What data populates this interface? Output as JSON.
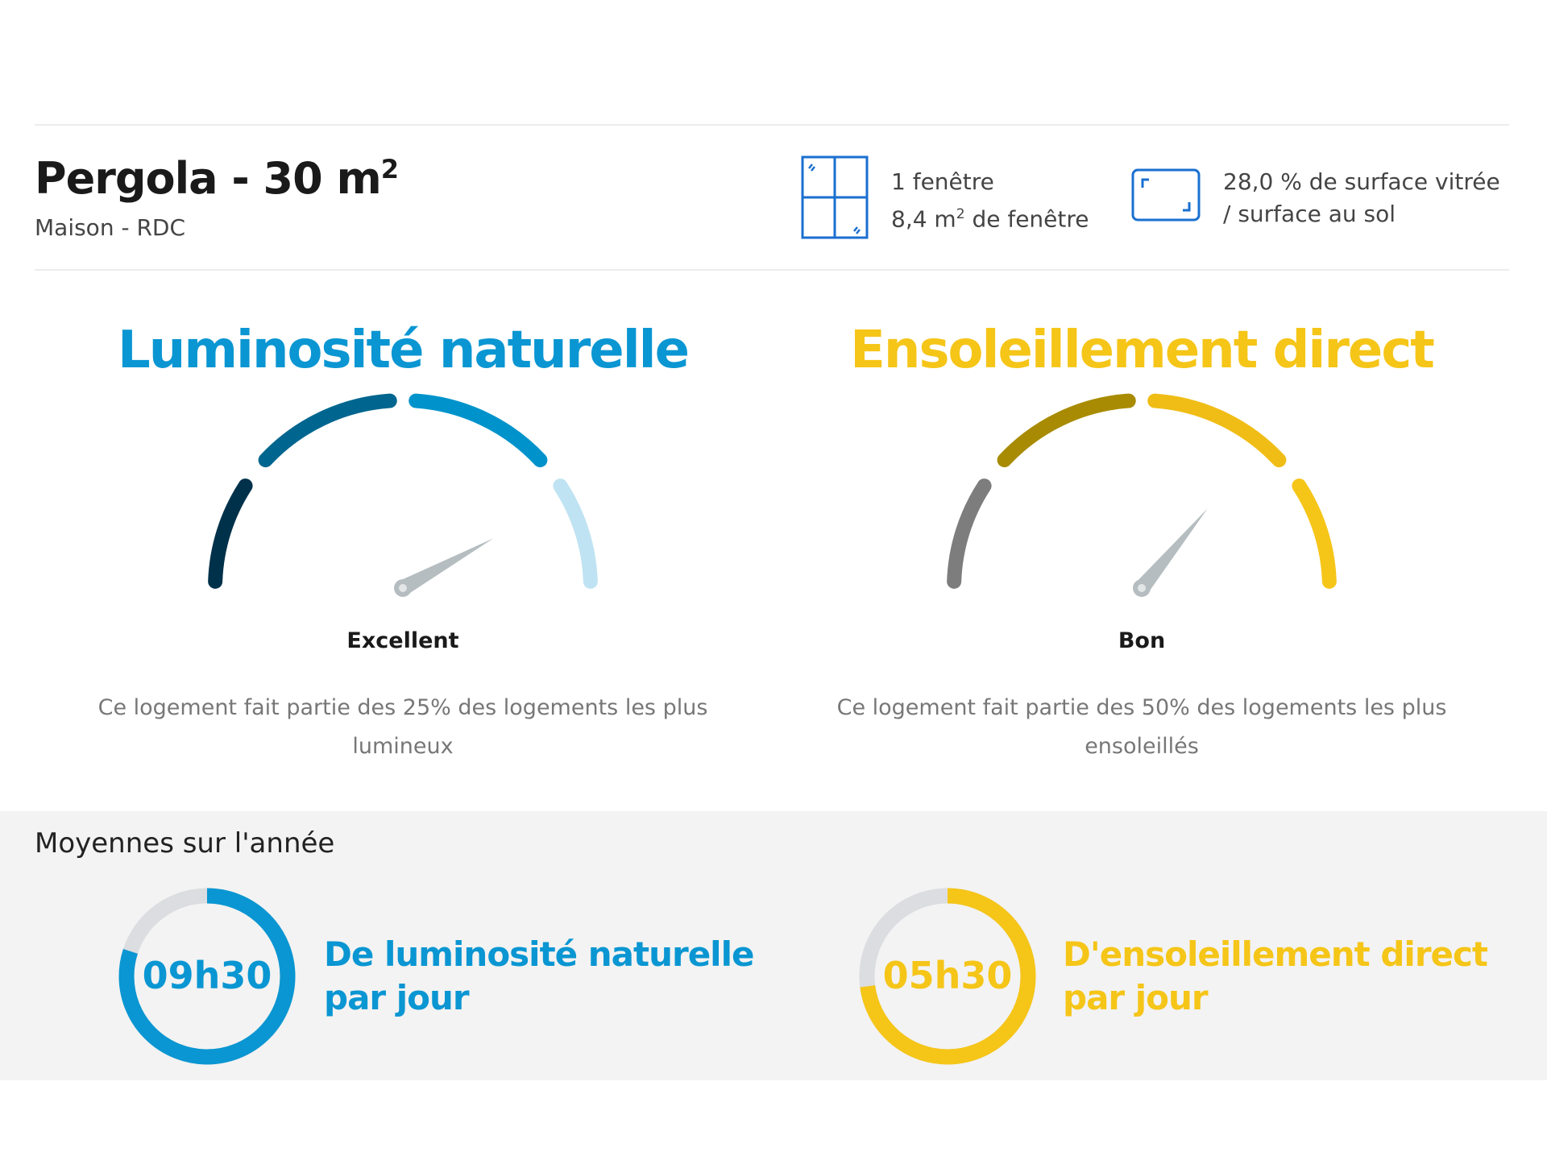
{
  "room": {
    "title": "Pergola - 30 m",
    "title_sup": "2",
    "subtitle": "Maison - RDC"
  },
  "windows": {
    "icon": "window-icon",
    "count_label": "1 fenêtre",
    "area_prefix": "8,4 m",
    "area_sup": "2",
    "area_suffix": " de fenêtre"
  },
  "glazing": {
    "icon": "surface-icon",
    "line1": "28,0 % de surface vitrée",
    "line2": "/ surface au sol"
  },
  "colors": {
    "blue": "#0a96d2",
    "yellow": "#f5c518"
  },
  "gauges": [
    {
      "title": "Luminosité naturelle",
      "rating": "Excellent",
      "description": "Ce logement fait partie des 25% des logements les plus lumineux",
      "needle_level": 0.84,
      "color": "#0a96d2",
      "segment_colors": [
        "#00314a",
        "#00668f",
        "#0093cb",
        "#bfe3f2"
      ]
    },
    {
      "title": "Ensoleillement direct",
      "rating": "Bon",
      "description": "Ce logement fait partie des 50% des logements les plus ensoleillés",
      "needle_level": 0.72,
      "color": "#f5c518",
      "segment_colors": [
        "#7d7d7d",
        "#a88b02",
        "#f0bd16",
        "#f5c518"
      ]
    }
  ],
  "averages": {
    "title": "Moyennes sur l'année",
    "items": [
      {
        "value": "09h30",
        "line1": "De luminosité naturelle",
        "line2": "par jour",
        "fill": 0.8,
        "color": "#0a96d2"
      },
      {
        "value": "05h30",
        "line1": "D'ensoleillement direct",
        "line2": "par jour",
        "fill": 0.73,
        "color": "#f5c518"
      }
    ]
  }
}
